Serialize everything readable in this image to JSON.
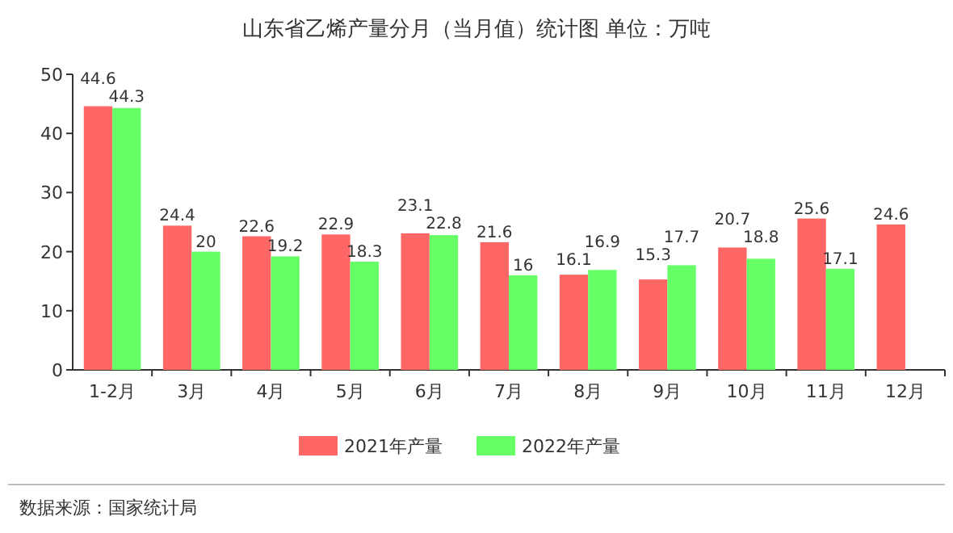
{
  "chart_data": {
    "type": "bar",
    "title": "山东省乙烯产量分月（当月值）统计图 单位：万吨",
    "categories": [
      "1-2月",
      "3月",
      "4月",
      "5月",
      "6月",
      "7月",
      "8月",
      "9月",
      "10月",
      "11月",
      "12月"
    ],
    "series": [
      {
        "name": "2021年产量",
        "color": "#ff6666",
        "values": [
          44.6,
          24.4,
          22.6,
          22.9,
          23.1,
          21.6,
          16.1,
          15.3,
          20.7,
          25.6,
          24.6
        ]
      },
      {
        "name": "2022年产量",
        "color": "#66ff66",
        "values": [
          44.3,
          20,
          19.2,
          18.3,
          22.8,
          16,
          16.9,
          17.7,
          18.8,
          17.1,
          null
        ]
      }
    ],
    "ylim": [
      0,
      50
    ],
    "yticks": [
      0,
      10,
      20,
      30,
      40,
      50
    ],
    "data_labels": true,
    "legend": "bottom",
    "annotations": [
      "数据来源：国家统计局"
    ]
  }
}
